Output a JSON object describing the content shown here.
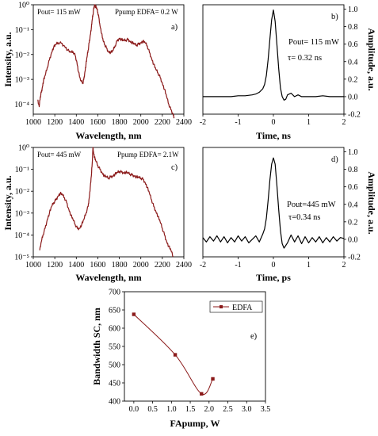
{
  "chart_data": [
    {
      "panel": "a)",
      "type": "line",
      "xlabel": "Wavelength, nm",
      "ylabel": "Intensity, a.u.",
      "xlim": [
        1000,
        2400
      ],
      "ylim": [
        4e-05,
        1
      ],
      "y_scale": "log",
      "xticks": [
        "1000",
        "1200",
        "1400",
        "1600",
        "1800",
        "2000",
        "2200",
        "2400"
      ],
      "yticks": [
        "10⁰",
        "10⁻¹",
        "10⁻²",
        "10⁻³",
        "10⁻⁴"
      ],
      "annotations": [
        "Pout= 115 mW",
        "Ppump EDFA= 0.2 W"
      ],
      "color": "#8b1a1a",
      "series": [
        {
          "x": [
            1040,
            1055,
            1065,
            1075,
            1085,
            1095,
            1110,
            1130,
            1150,
            1170,
            1190,
            1210,
            1230,
            1260,
            1290,
            1320,
            1350,
            1370,
            1390,
            1405,
            1420,
            1440,
            1460,
            1470,
            1480,
            1490,
            1500,
            1510,
            1520,
            1530,
            1540,
            1548,
            1555,
            1562,
            1570,
            1580,
            1590,
            1600,
            1610,
            1620,
            1635,
            1650,
            1665,
            1680,
            1700,
            1720,
            1740,
            1760,
            1780,
            1800,
            1820,
            1840,
            1860,
            1880,
            1900,
            1920,
            1940,
            1960,
            1980,
            2000,
            2020,
            2040,
            2060,
            2080,
            2100,
            2120,
            2140,
            2160,
            2180,
            2200,
            2220,
            2240,
            2260,
            2280,
            2300,
            2310
          ],
          "y": [
            0.00015,
            8e-05,
            0.0002,
            0.0003,
            0.0005,
            0.0009,
            0.0014,
            0.003,
            0.006,
            0.012,
            0.02,
            0.025,
            0.03,
            0.028,
            0.022,
            0.015,
            0.012,
            0.013,
            0.009,
            0.005,
            0.002,
            0.0009,
            0.0007,
            0.001,
            0.002,
            0.004,
            0.008,
            0.015,
            0.03,
            0.06,
            0.12,
            0.25,
            0.4,
            0.7,
            1.0,
            0.85,
            0.7,
            0.5,
            0.3,
            0.15,
            0.07,
            0.035,
            0.025,
            0.018,
            0.013,
            0.012,
            0.014,
            0.022,
            0.035,
            0.045,
            0.04,
            0.036,
            0.038,
            0.04,
            0.034,
            0.03,
            0.026,
            0.024,
            0.026,
            0.03,
            0.034,
            0.03,
            0.022,
            0.012,
            0.007,
            0.004,
            0.0025,
            0.0018,
            0.0012,
            0.0007,
            0.0004,
            0.0002,
            0.0001,
            6e-05,
            4e-05,
            3e-05
          ]
        }
      ]
    },
    {
      "panel": "b)",
      "type": "line",
      "xlabel": "Time, ns",
      "ylabel": "Amplitude, a.u.",
      "xlim": [
        -2,
        2
      ],
      "ylim": [
        -0.2,
        1.05
      ],
      "xticks": [
        "-2",
        "-1",
        "0",
        "1",
        "2"
      ],
      "yticks": [
        "1.0",
        "0.8",
        "0.6",
        "0.4",
        "0.2",
        "0.0",
        "-0.2"
      ],
      "annotations": [
        "Pout= 115 mW",
        "τ= 0.32 ns"
      ],
      "color": "#000000",
      "series": [
        {
          "x": [
            -2,
            -1.8,
            -1.6,
            -1.4,
            -1.2,
            -1.0,
            -0.8,
            -0.6,
            -0.5,
            -0.4,
            -0.3,
            -0.25,
            -0.2,
            -0.15,
            -0.1,
            -0.05,
            0,
            0.05,
            0.1,
            0.15,
            0.2,
            0.25,
            0.3,
            0.35,
            0.4,
            0.5,
            0.6,
            0.7,
            0.8,
            1.0,
            1.2,
            1.4,
            1.6,
            1.8,
            2.0
          ],
          "y": [
            0.0,
            0.0,
            0.0,
            0.0,
            0.0,
            0.01,
            0.01,
            0.02,
            0.03,
            0.05,
            0.09,
            0.14,
            0.24,
            0.42,
            0.66,
            0.88,
            0.99,
            0.86,
            0.6,
            0.32,
            0.1,
            0.0,
            -0.04,
            -0.03,
            0.02,
            0.04,
            0.0,
            0.02,
            0.0,
            0.0,
            0.0,
            0.01,
            0.0,
            0.0,
            0.0
          ]
        }
      ]
    },
    {
      "panel": "c)",
      "type": "line",
      "xlabel": "Wavelength, nm",
      "ylabel": "Intensity, a.u.",
      "xlim": [
        1000,
        2400
      ],
      "ylim": [
        1e-05,
        1
      ],
      "y_scale": "log",
      "xticks": [
        "1000",
        "1200",
        "1400",
        "1600",
        "1800",
        "2000",
        "2200",
        "2400"
      ],
      "yticks": [
        "10⁰",
        "10⁻¹",
        "10⁻²",
        "10⁻³",
        "10⁻⁴",
        "10⁻⁵"
      ],
      "annotations": [
        "Pout= 445 mW",
        "Ppump EDFA= 2.1W"
      ],
      "color": "#8b1a1a",
      "series": [
        {
          "x": [
            1060,
            1075,
            1090,
            1110,
            1130,
            1150,
            1170,
            1190,
            1210,
            1230,
            1250,
            1270,
            1290,
            1310,
            1330,
            1350,
            1370,
            1390,
            1410,
            1430,
            1450,
            1470,
            1490,
            1510,
            1520,
            1530,
            1540,
            1548,
            1555,
            1560,
            1570,
            1580,
            1600,
            1620,
            1640,
            1660,
            1680,
            1700,
            1720,
            1740,
            1760,
            1780,
            1800,
            1820,
            1840,
            1860,
            1880,
            1900,
            1920,
            1940,
            1960,
            1980,
            2000,
            2020,
            2040,
            2060,
            2080,
            2100,
            2120,
            2140,
            2160,
            2180,
            2200,
            2220,
            2240,
            2260,
            2280,
            2300
          ],
          "y": [
            2e-05,
            5e-05,
            0.0001,
            0.0002,
            0.0005,
            0.001,
            0.002,
            0.003,
            0.004,
            0.006,
            0.008,
            0.007,
            0.005,
            0.003,
            0.0015,
            0.0008,
            0.0005,
            0.0003,
            0.0002,
            0.0002,
            0.0003,
            0.0005,
            0.001,
            0.002,
            0.005,
            0.015,
            0.05,
            0.2,
            1.0,
            0.6,
            0.35,
            0.25,
            0.15,
            0.1,
            0.07,
            0.05,
            0.045,
            0.04,
            0.045,
            0.05,
            0.06,
            0.07,
            0.08,
            0.075,
            0.07,
            0.072,
            0.068,
            0.06,
            0.055,
            0.05,
            0.045,
            0.042,
            0.04,
            0.035,
            0.025,
            0.015,
            0.008,
            0.004,
            0.002,
            0.0012,
            0.0007,
            0.0004,
            0.0002,
            0.0001,
            5e-05,
            3e-05,
            2e-05,
            1e-05
          ]
        }
      ]
    },
    {
      "panel": "d)",
      "type": "line",
      "xlabel": "Time, ps",
      "ylabel": "Amplitude, a.u.",
      "xlim": [
        -2,
        2
      ],
      "ylim": [
        -0.2,
        1.05
      ],
      "xticks": [
        "-2",
        "-1",
        "0",
        "1",
        "2"
      ],
      "yticks": [
        "1.0",
        "0.8",
        "0.6",
        "0.4",
        "0.2",
        "0.0",
        "-0.2"
      ],
      "annotations": [
        "Pout=445 mW",
        "τ=0.34 ns"
      ],
      "color": "#000000",
      "series": [
        {
          "x": [
            -2,
            -1.9,
            -1.8,
            -1.7,
            -1.6,
            -1.5,
            -1.4,
            -1.3,
            -1.2,
            -1.1,
            -1.0,
            -0.9,
            -0.8,
            -0.7,
            -0.6,
            -0.5,
            -0.4,
            -0.3,
            -0.25,
            -0.2,
            -0.15,
            -0.1,
            -0.05,
            0,
            0.05,
            0.1,
            0.15,
            0.2,
            0.25,
            0.3,
            0.4,
            0.5,
            0.6,
            0.7,
            0.8,
            0.9,
            1.0,
            1.1,
            1.2,
            1.3,
            1.4,
            1.5,
            1.6,
            1.7,
            1.8,
            1.9,
            2.0
          ],
          "y": [
            0.02,
            -0.03,
            0.03,
            -0.02,
            0.04,
            -0.03,
            0.03,
            -0.04,
            0.02,
            -0.03,
            0.04,
            -0.02,
            0.03,
            -0.04,
            0.0,
            0.04,
            -0.03,
            0.06,
            0.12,
            0.24,
            0.44,
            0.68,
            0.86,
            0.93,
            0.86,
            0.62,
            0.34,
            0.1,
            -0.05,
            -0.1,
            -0.04,
            0.05,
            -0.03,
            0.04,
            -0.05,
            0.03,
            -0.04,
            0.02,
            -0.03,
            0.03,
            -0.04,
            0.02,
            -0.03,
            0.03,
            -0.02,
            0.02,
            0.01
          ]
        }
      ]
    },
    {
      "panel": "e)",
      "type": "scatter",
      "xlabel": "FApump, W",
      "ylabel": "Bandwidth SC, nm",
      "xlim": [
        -0.25,
        3.5
      ],
      "ylim": [
        400,
        700
      ],
      "xticks": [
        "0.0",
        "0.5",
        "1.0",
        "1.5",
        "2.0",
        "2.5",
        "3.0",
        "3.5"
      ],
      "yticks": [
        "400",
        "450",
        "500",
        "550",
        "600",
        "650",
        "700"
      ],
      "legend": "EDFA",
      "legend_position": "top-right",
      "color": "#8b1a1a",
      "series": [
        {
          "name": "EDFA",
          "x": [
            0.0,
            1.1,
            1.8,
            2.1
          ],
          "y": [
            638,
            527,
            420,
            461
          ]
        }
      ]
    }
  ]
}
